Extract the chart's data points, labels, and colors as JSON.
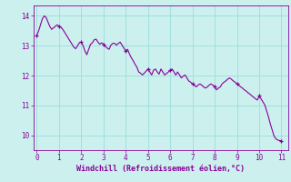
{
  "title": "",
  "xlabel": "Windchill (Refroidissement éolien,°C)",
  "ylabel": "",
  "xlim": [
    -0.15,
    11.3
  ],
  "ylim": [
    9.5,
    14.35
  ],
  "yticks": [
    10,
    11,
    12,
    13,
    14
  ],
  "xticks": [
    0,
    1,
    2,
    3,
    4,
    5,
    6,
    7,
    8,
    9,
    10,
    11
  ],
  "line_color": "#880099",
  "bg_color": "#ccf0ee",
  "grid_color": "#99dddd",
  "x": [
    0.0,
    0.083,
    0.167,
    0.25,
    0.333,
    0.417,
    0.5,
    0.583,
    0.667,
    0.75,
    0.833,
    0.917,
    1.0,
    1.083,
    1.167,
    1.25,
    1.333,
    1.417,
    1.5,
    1.583,
    1.667,
    1.75,
    1.833,
    1.917,
    2.0,
    2.083,
    2.167,
    2.25,
    2.333,
    2.417,
    2.5,
    2.583,
    2.667,
    2.75,
    2.833,
    2.917,
    3.0,
    3.083,
    3.167,
    3.25,
    3.333,
    3.417,
    3.5,
    3.583,
    3.667,
    3.75,
    3.833,
    3.917,
    4.0,
    4.083,
    4.167,
    4.25,
    4.333,
    4.417,
    4.5,
    4.583,
    4.667,
    4.75,
    4.833,
    4.917,
    5.0,
    5.083,
    5.167,
    5.25,
    5.333,
    5.417,
    5.5,
    5.583,
    5.667,
    5.75,
    5.833,
    5.917,
    6.0,
    6.083,
    6.167,
    6.25,
    6.333,
    6.417,
    6.5,
    6.583,
    6.667,
    6.75,
    6.833,
    6.917,
    7.0,
    7.083,
    7.167,
    7.25,
    7.333,
    7.417,
    7.5,
    7.583,
    7.667,
    7.75,
    7.833,
    7.917,
    8.0,
    8.083,
    8.167,
    8.25,
    8.333,
    8.417,
    8.5,
    8.583,
    8.667,
    8.75,
    8.833,
    8.917,
    9.0,
    9.083,
    9.167,
    9.25,
    9.333,
    9.417,
    9.5,
    9.583,
    9.667,
    9.75,
    9.833,
    9.917,
    10.0,
    10.083,
    10.167,
    10.25,
    10.333,
    10.417,
    10.5,
    10.583,
    10.667,
    10.75,
    10.833,
    10.917,
    11.0
  ],
  "y": [
    13.35,
    13.5,
    13.7,
    13.9,
    14.0,
    13.95,
    13.8,
    13.65,
    13.55,
    13.6,
    13.65,
    13.7,
    13.65,
    13.62,
    13.55,
    13.45,
    13.35,
    13.25,
    13.15,
    13.05,
    12.95,
    12.9,
    13.0,
    13.1,
    13.12,
    13.0,
    12.82,
    12.7,
    12.88,
    13.05,
    13.1,
    13.2,
    13.22,
    13.12,
    13.05,
    13.1,
    13.05,
    12.98,
    12.92,
    12.88,
    13.02,
    13.08,
    13.08,
    13.02,
    13.08,
    13.12,
    13.02,
    12.92,
    12.82,
    12.88,
    12.72,
    12.6,
    12.5,
    12.38,
    12.28,
    12.12,
    12.08,
    12.02,
    12.08,
    12.15,
    12.22,
    12.12,
    12.02,
    12.18,
    12.22,
    12.12,
    12.05,
    12.22,
    12.12,
    12.02,
    12.07,
    12.12,
    12.18,
    12.22,
    12.12,
    12.02,
    12.12,
    12.02,
    11.92,
    11.98,
    12.02,
    11.92,
    11.82,
    11.78,
    11.72,
    11.68,
    11.62,
    11.68,
    11.72,
    11.68,
    11.62,
    11.58,
    11.62,
    11.68,
    11.72,
    11.68,
    11.62,
    11.52,
    11.58,
    11.62,
    11.72,
    11.78,
    11.82,
    11.88,
    11.92,
    11.88,
    11.82,
    11.78,
    11.72,
    11.68,
    11.62,
    11.58,
    11.52,
    11.48,
    11.42,
    11.38,
    11.32,
    11.28,
    11.22,
    11.18,
    11.32,
    11.22,
    11.12,
    11.02,
    10.82,
    10.62,
    10.38,
    10.18,
    9.98,
    9.88,
    9.84,
    9.82,
    9.82
  ]
}
